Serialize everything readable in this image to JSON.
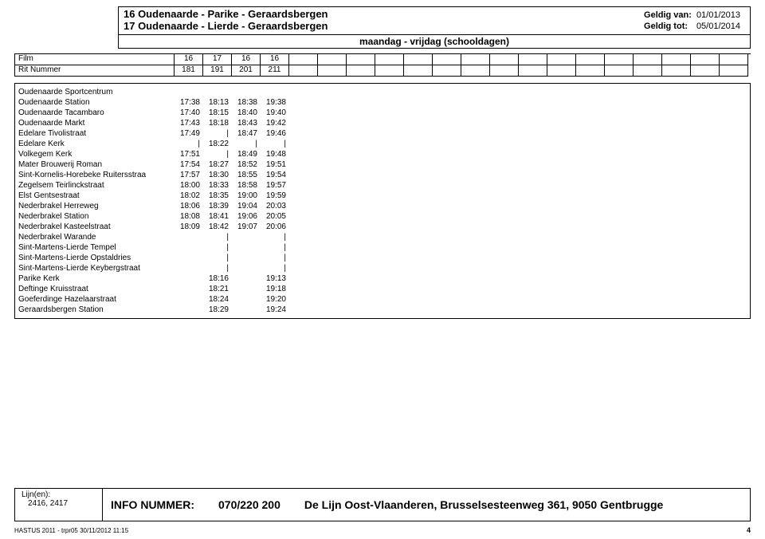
{
  "header": {
    "title_line1": "16 Oudenaarde - Parike - Geraardsbergen",
    "title_line2": "17 Oudenaarde - Lierde - Geraardsbergen",
    "valid_from_label": "Geldig van:",
    "valid_from": "01/01/2013",
    "valid_to_label": "Geldig tot:",
    "valid_to": "05/01/2014"
  },
  "period": "maandag - vrijdag (schooldagen)",
  "runheader": {
    "film_label": "Film",
    "rit_label": "Rit Nummer",
    "film": [
      "16",
      "17",
      "16",
      "16",
      "",
      "",
      "",
      "",
      "",
      "",
      "",
      "",
      "",
      "",
      "",
      "",
      "",
      "",
      "",
      ""
    ],
    "rit": [
      "181",
      "191",
      "201",
      "211",
      "",
      "",
      "",
      "",
      "",
      "",
      "",
      "",
      "",
      "",
      "",
      "",
      "",
      "",
      "",
      ""
    ]
  },
  "stops": [
    {
      "name": "Oudenaarde Sportcentrum",
      "t": [
        "",
        "",
        "",
        "",
        "",
        "",
        "",
        "",
        "",
        "",
        "",
        "",
        "",
        "",
        "",
        "",
        "",
        "",
        "",
        ""
      ]
    },
    {
      "name": "Oudenaarde Station",
      "t": [
        "17:38",
        "18:13",
        "18:38",
        "19:38",
        "",
        "",
        "",
        "",
        "",
        "",
        "",
        "",
        "",
        "",
        "",
        "",
        "",
        "",
        "",
        ""
      ]
    },
    {
      "name": "Oudenaarde Tacambaro",
      "t": [
        "17:40",
        "18:15",
        "18:40",
        "19:40",
        "",
        "",
        "",
        "",
        "",
        "",
        "",
        "",
        "",
        "",
        "",
        "",
        "",
        "",
        "",
        ""
      ]
    },
    {
      "name": "Oudenaarde Markt",
      "t": [
        "17:43",
        "18:18",
        "18:43",
        "19:42",
        "",
        "",
        "",
        "",
        "",
        "",
        "",
        "",
        "",
        "",
        "",
        "",
        "",
        "",
        "",
        ""
      ]
    },
    {
      "name": "Edelare Tivolistraat",
      "t": [
        "17:49",
        "|",
        "18:47",
        "19:46",
        "",
        "",
        "",
        "",
        "",
        "",
        "",
        "",
        "",
        "",
        "",
        "",
        "",
        "",
        "",
        ""
      ]
    },
    {
      "name": "Edelare Kerk",
      "t": [
        "|",
        "18:22",
        "|",
        "|",
        "",
        "",
        "",
        "",
        "",
        "",
        "",
        "",
        "",
        "",
        "",
        "",
        "",
        "",
        "",
        ""
      ]
    },
    {
      "name": "Volkegem Kerk",
      "t": [
        "17:51",
        "|",
        "18:49",
        "19:48",
        "",
        "",
        "",
        "",
        "",
        "",
        "",
        "",
        "",
        "",
        "",
        "",
        "",
        "",
        "",
        ""
      ]
    },
    {
      "name": "Mater Brouwerij Roman",
      "t": [
        "17:54",
        "18:27",
        "18:52",
        "19:51",
        "",
        "",
        "",
        "",
        "",
        "",
        "",
        "",
        "",
        "",
        "",
        "",
        "",
        "",
        "",
        ""
      ]
    },
    {
      "name": "Sint-Kornelis-Horebeke Ruitersstraa",
      "t": [
        "17:57",
        "18:30",
        "18:55",
        "19:54",
        "",
        "",
        "",
        "",
        "",
        "",
        "",
        "",
        "",
        "",
        "",
        "",
        "",
        "",
        "",
        ""
      ]
    },
    {
      "name": "Zegelsem Teirlinckstraat",
      "t": [
        "18:00",
        "18:33",
        "18:58",
        "19:57",
        "",
        "",
        "",
        "",
        "",
        "",
        "",
        "",
        "",
        "",
        "",
        "",
        "",
        "",
        "",
        ""
      ]
    },
    {
      "name": "Elst Gentsestraat",
      "t": [
        "18:02",
        "18:35",
        "19:00",
        "19:59",
        "",
        "",
        "",
        "",
        "",
        "",
        "",
        "",
        "",
        "",
        "",
        "",
        "",
        "",
        "",
        ""
      ]
    },
    {
      "name": "Nederbrakel Herreweg",
      "t": [
        "18:06",
        "18:39",
        "19:04",
        "20:03",
        "",
        "",
        "",
        "",
        "",
        "",
        "",
        "",
        "",
        "",
        "",
        "",
        "",
        "",
        "",
        ""
      ]
    },
    {
      "name": "Nederbrakel Station",
      "t": [
        "18:08",
        "18:41",
        "19:06",
        "20:05",
        "",
        "",
        "",
        "",
        "",
        "",
        "",
        "",
        "",
        "",
        "",
        "",
        "",
        "",
        "",
        ""
      ]
    },
    {
      "name": "Nederbrakel Kasteelstraat",
      "t": [
        "18:09",
        "18:42",
        "19:07",
        "20:06",
        "",
        "",
        "",
        "",
        "",
        "",
        "",
        "",
        "",
        "",
        "",
        "",
        "",
        "",
        "",
        ""
      ]
    },
    {
      "name": "Nederbrakel Warande",
      "t": [
        "",
        "|",
        "",
        "|",
        "",
        "",
        "",
        "",
        "",
        "",
        "",
        "",
        "",
        "",
        "",
        "",
        "",
        "",
        "",
        ""
      ]
    },
    {
      "name": "Sint-Martens-Lierde Tempel",
      "t": [
        "",
        "|",
        "",
        "|",
        "",
        "",
        "",
        "",
        "",
        "",
        "",
        "",
        "",
        "",
        "",
        "",
        "",
        "",
        "",
        ""
      ]
    },
    {
      "name": "Sint-Martens-Lierde Opstaldries",
      "t": [
        "",
        "|",
        "",
        "|",
        "",
        "",
        "",
        "",
        "",
        "",
        "",
        "",
        "",
        "",
        "",
        "",
        "",
        "",
        "",
        ""
      ]
    },
    {
      "name": "Sint-Martens-Lierde Keybergstraat",
      "t": [
        "",
        "|",
        "",
        "|",
        "",
        "",
        "",
        "",
        "",
        "",
        "",
        "",
        "",
        "",
        "",
        "",
        "",
        "",
        "",
        ""
      ]
    },
    {
      "name": "Parike Kerk",
      "t": [
        "",
        "18:16",
        "",
        "19:13",
        "",
        "",
        "",
        "",
        "",
        "",
        "",
        "",
        "",
        "",
        "",
        "",
        "",
        "",
        "",
        ""
      ]
    },
    {
      "name": "Deftinge Kruisstraat",
      "t": [
        "",
        "18:21",
        "",
        "19:18",
        "",
        "",
        "",
        "",
        "",
        "",
        "",
        "",
        "",
        "",
        "",
        "",
        "",
        "",
        "",
        ""
      ]
    },
    {
      "name": "Goeferdinge Hazelaarstraat",
      "t": [
        "",
        "18:24",
        "",
        "19:20",
        "",
        "",
        "",
        "",
        "",
        "",
        "",
        "",
        "",
        "",
        "",
        "",
        "",
        "",
        "",
        ""
      ]
    },
    {
      "name": "Geraardsbergen Station",
      "t": [
        "",
        "18:29",
        "",
        "19:24",
        "",
        "",
        "",
        "",
        "",
        "",
        "",
        "",
        "",
        "",
        "",
        "",
        "",
        "",
        "",
        ""
      ]
    }
  ],
  "footer": {
    "lijnen_label": "Lijn(en):",
    "lijnen": "2416,   2417",
    "info_label": "INFO NUMMER:",
    "info_num": "070/220 200",
    "address": "De Lijn Oost-Vlaanderen, Brusselsesteenweg 361, 9050 Gentbrugge"
  },
  "bottom": {
    "gen": "HASTUS 2011 - trpr05 30/11/2012 11:15",
    "page": "4"
  }
}
